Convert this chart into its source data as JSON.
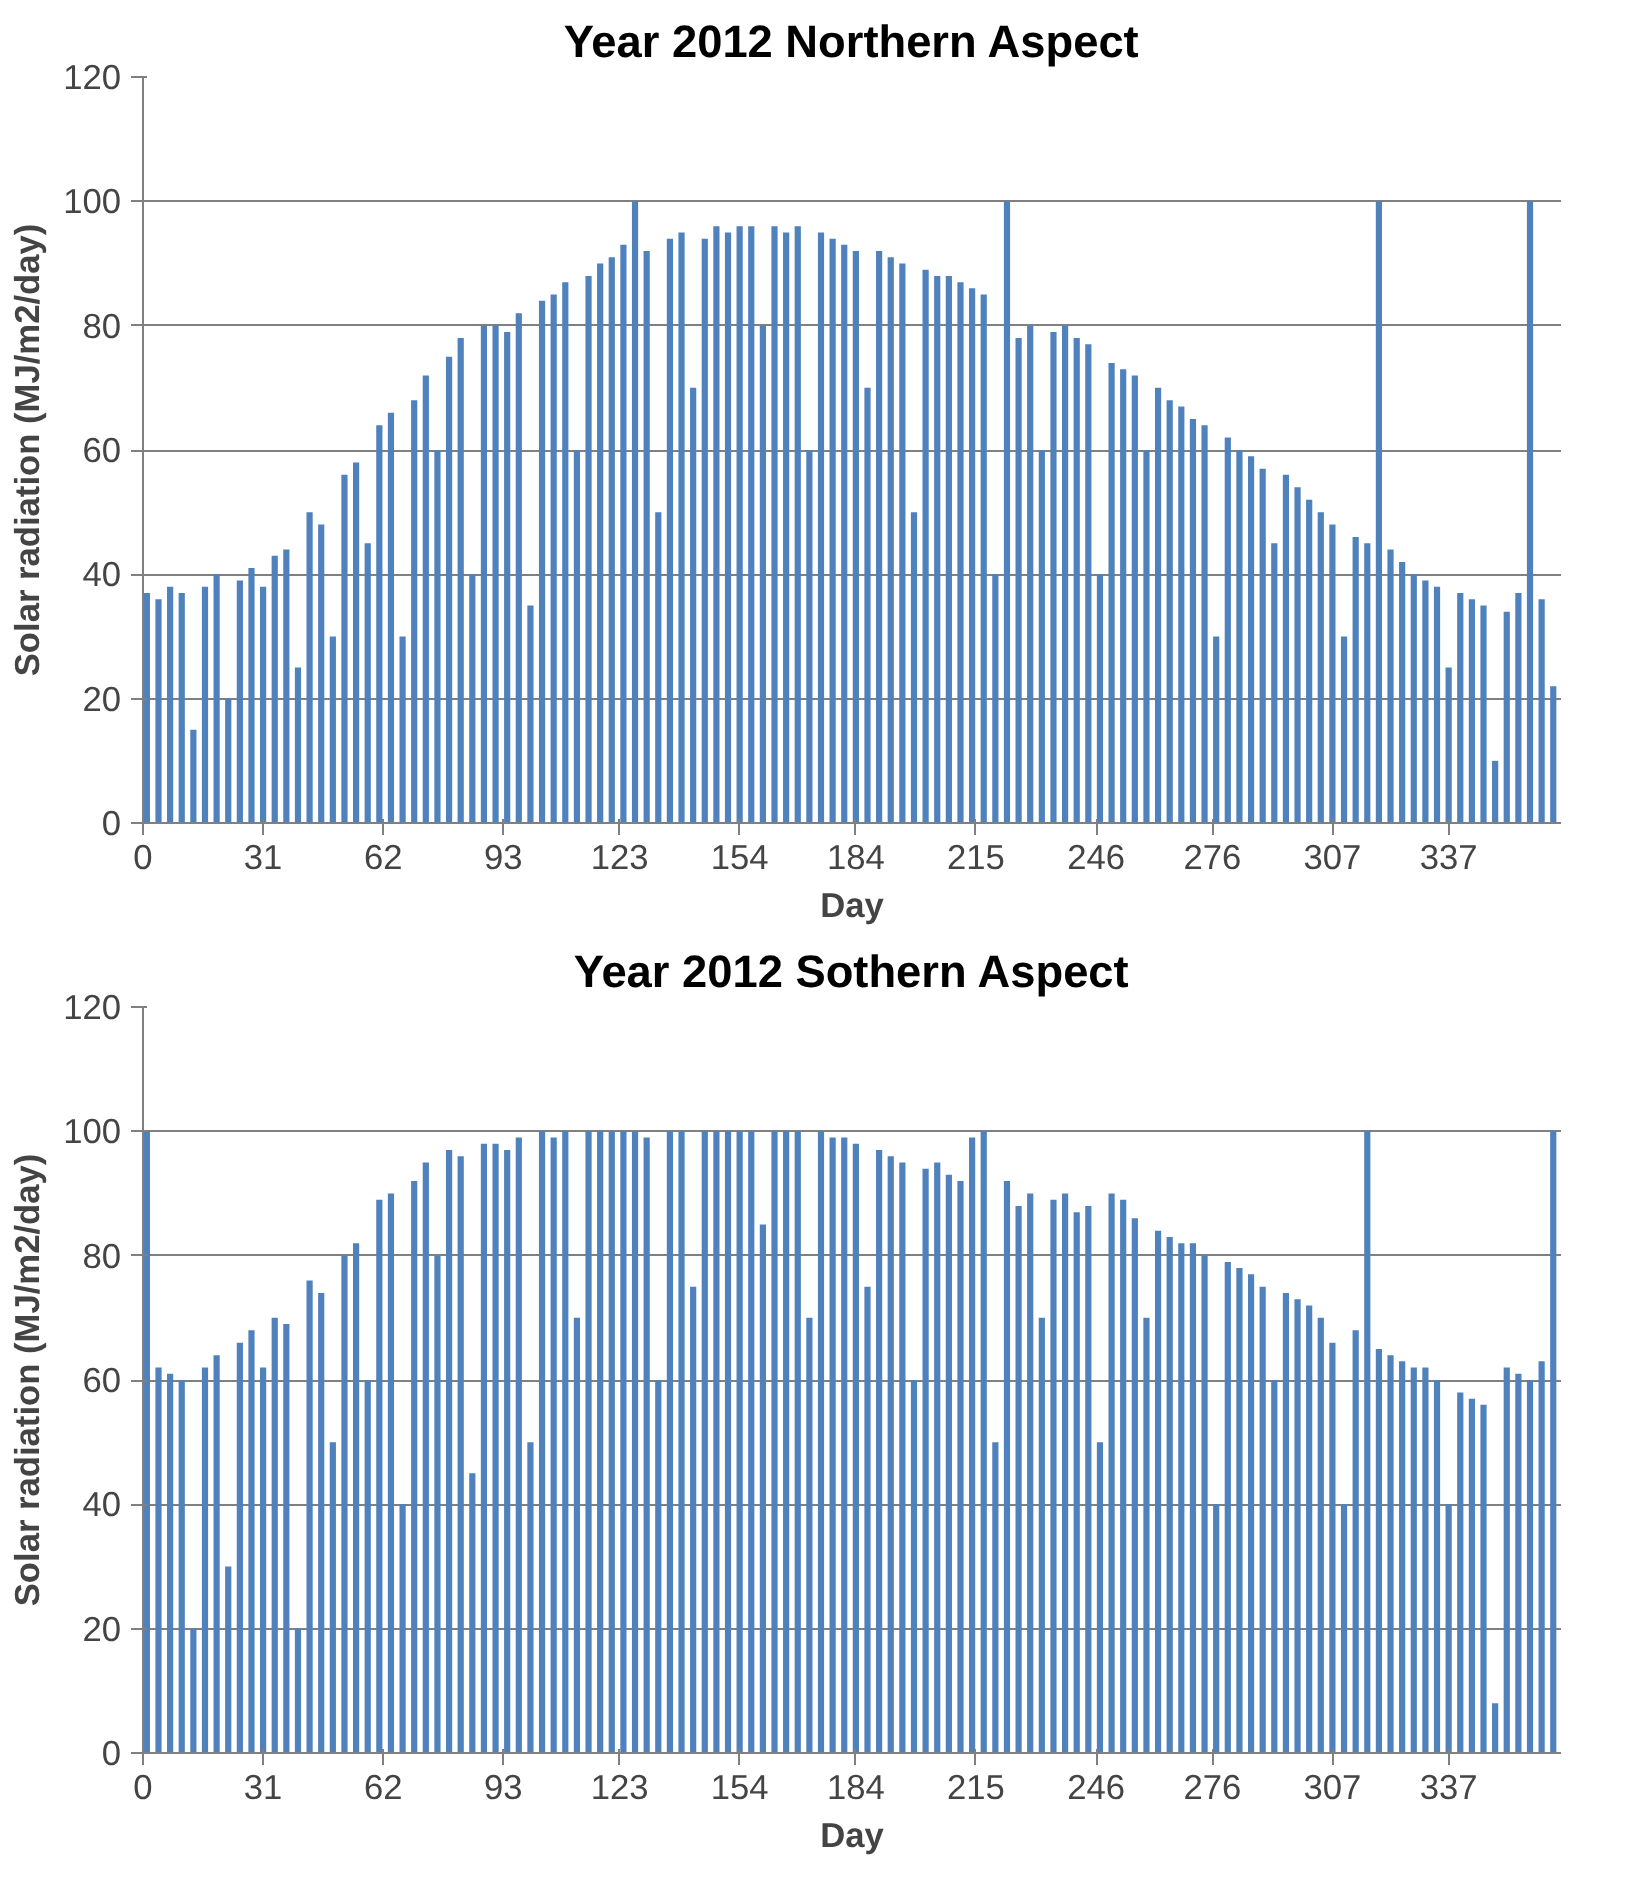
{
  "chart_data": [
    {
      "type": "bar",
      "title": "Year 2012 Northern Aspect",
      "xlabel": "Day",
      "ylabel": "Solar radiation (MJ/m2/day)",
      "color": "#4f81bd",
      "xlim": [
        0,
        366
      ],
      "xticks": [
        0,
        31,
        62,
        93,
        123,
        154,
        184,
        215,
        246,
        276,
        307,
        337
      ],
      "ylim": [
        0,
        120
      ],
      "yticks": [
        0,
        20,
        40,
        60,
        80,
        100,
        120
      ],
      "grid": "y",
      "x": [
        1,
        4,
        7,
        10,
        13,
        16,
        19,
        22,
        25,
        28,
        31,
        34,
        37,
        40,
        43,
        46,
        49,
        52,
        55,
        58,
        61,
        64,
        67,
        70,
        73,
        76,
        79,
        82,
        85,
        88,
        91,
        94,
        97,
        100,
        103,
        106,
        109,
        112,
        115,
        118,
        121,
        124,
        127,
        130,
        133,
        136,
        139,
        142,
        145,
        148,
        151,
        154,
        157,
        160,
        163,
        166,
        169,
        172,
        175,
        178,
        181,
        184,
        187,
        190,
        193,
        196,
        199,
        202,
        205,
        208,
        211,
        214,
        217,
        220,
        223,
        226,
        229,
        232,
        235,
        238,
        241,
        244,
        247,
        250,
        253,
        256,
        259,
        262,
        265,
        268,
        271,
        274,
        277,
        280,
        283,
        286,
        289,
        292,
        295,
        298,
        301,
        304,
        307,
        310,
        313,
        316,
        319,
        322,
        325,
        328,
        331,
        334,
        337,
        340,
        343,
        346,
        349,
        352,
        355,
        358,
        361,
        364
      ],
      "values": [
        37,
        36,
        38,
        37,
        15,
        38,
        40,
        20,
        39,
        41,
        38,
        43,
        44,
        25,
        50,
        48,
        30,
        56,
        58,
        45,
        64,
        66,
        30,
        68,
        72,
        60,
        75,
        78,
        40,
        80,
        80,
        79,
        82,
        35,
        84,
        85,
        87,
        60,
        88,
        90,
        91,
        93,
        100,
        92,
        50,
        94,
        95,
        70,
        94,
        96,
        95,
        96,
        96,
        80,
        96,
        95,
        96,
        60,
        95,
        94,
        93,
        92,
        70,
        92,
        91,
        90,
        50,
        89,
        88,
        88,
        87,
        86,
        85,
        40,
        100,
        78,
        80,
        60,
        79,
        80,
        78,
        77,
        40,
        74,
        73,
        72,
        60,
        70,
        68,
        67,
        65,
        64,
        30,
        62,
        60,
        59,
        57,
        45,
        56,
        54,
        52,
        50,
        48,
        30,
        46,
        45,
        100,
        44,
        42,
        40,
        39,
        38,
        25,
        37,
        36,
        35,
        10,
        34,
        37,
        100,
        36,
        22
      ]
    },
    {
      "type": "bar",
      "title": "Year 2012 Sothern Aspect",
      "xlabel": "Day",
      "ylabel": "Solar radiation (MJ/m2/day)",
      "color": "#4f81bd",
      "xlim": [
        0,
        366
      ],
      "xticks": [
        0,
        31,
        62,
        93,
        123,
        154,
        184,
        215,
        246,
        276,
        307,
        337
      ],
      "ylim": [
        0,
        120
      ],
      "yticks": [
        0,
        20,
        40,
        60,
        80,
        100,
        120
      ],
      "grid": "y",
      "x": [
        1,
        4,
        7,
        10,
        13,
        16,
        19,
        22,
        25,
        28,
        31,
        34,
        37,
        40,
        43,
        46,
        49,
        52,
        55,
        58,
        61,
        64,
        67,
        70,
        73,
        76,
        79,
        82,
        85,
        88,
        91,
        94,
        97,
        100,
        103,
        106,
        109,
        112,
        115,
        118,
        121,
        124,
        127,
        130,
        133,
        136,
        139,
        142,
        145,
        148,
        151,
        154,
        157,
        160,
        163,
        166,
        169,
        172,
        175,
        178,
        181,
        184,
        187,
        190,
        193,
        196,
        199,
        202,
        205,
        208,
        211,
        214,
        217,
        220,
        223,
        226,
        229,
        232,
        235,
        238,
        241,
        244,
        247,
        250,
        253,
        256,
        259,
        262,
        265,
        268,
        271,
        274,
        277,
        280,
        283,
        286,
        289,
        292,
        295,
        298,
        301,
        304,
        307,
        310,
        313,
        316,
        319,
        322,
        325,
        328,
        331,
        334,
        337,
        340,
        343,
        346,
        349,
        352,
        355,
        358,
        361,
        364
      ],
      "values": [
        100,
        62,
        61,
        60,
        20,
        62,
        64,
        30,
        66,
        68,
        62,
        70,
        69,
        20,
        76,
        74,
        50,
        80,
        82,
        60,
        89,
        90,
        40,
        92,
        95,
        80,
        97,
        96,
        45,
        98,
        98,
        97,
        99,
        50,
        100,
        99,
        100,
        70,
        100,
        100,
        100,
        100,
        100,
        99,
        60,
        100,
        100,
        75,
        100,
        100,
        100,
        100,
        100,
        85,
        100,
        100,
        100,
        70,
        100,
        99,
        99,
        98,
        75,
        97,
        96,
        95,
        60,
        94,
        95,
        93,
        92,
        99,
        100,
        50,
        92,
        88,
        90,
        70,
        89,
        90,
        87,
        88,
        50,
        90,
        89,
        86,
        70,
        84,
        83,
        82,
        82,
        80,
        40,
        79,
        78,
        77,
        75,
        60,
        74,
        73,
        72,
        70,
        66,
        40,
        68,
        100,
        65,
        64,
        63,
        62,
        62,
        60,
        40,
        58,
        57,
        56,
        8,
        62,
        61,
        60,
        63,
        100
      ]
    }
  ]
}
